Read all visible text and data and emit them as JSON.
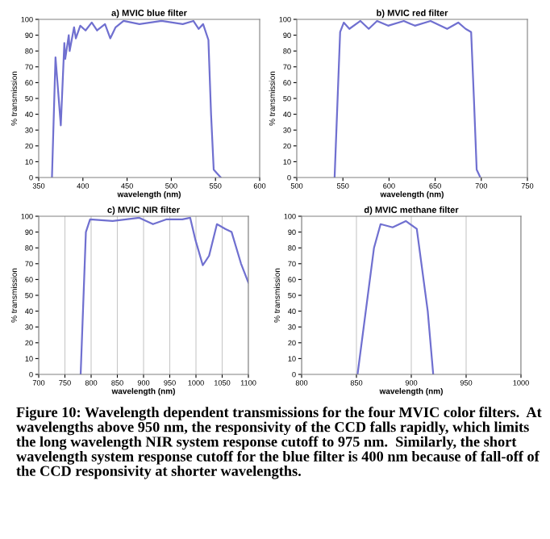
{
  "chart_data": [
    {
      "type": "line",
      "title": "a) MVIC blue filter",
      "xlabel": "wavelength (nm)",
      "ylabel": "% transmission",
      "xlim": [
        350,
        600
      ],
      "xticks": [
        350,
        400,
        450,
        500,
        550,
        600
      ],
      "ylim": [
        0,
        100
      ],
      "yticks": [
        0,
        10,
        20,
        30,
        40,
        50,
        60,
        70,
        80,
        90,
        100
      ],
      "grid": false,
      "line_style": "solid",
      "series": [
        {
          "color": "#7070d0",
          "x": [
            365,
            369,
            375,
            379,
            380,
            384,
            385,
            390,
            392,
            397,
            403,
            410,
            416,
            425,
            431,
            437,
            446,
            464,
            489,
            513,
            525,
            531,
            536,
            542,
            545,
            548,
            556
          ],
          "values": [
            0,
            76,
            33,
            85,
            75,
            90,
            80,
            95,
            88,
            96,
            93,
            98,
            93,
            97,
            88,
            95,
            99,
            97,
            99,
            97,
            99,
            94,
            97,
            87,
            40,
            5,
            0
          ]
        }
      ]
    },
    {
      "type": "line",
      "title": "b) MVIC red filter",
      "xlabel": "wavelength (nm)",
      "ylabel": "% transmission",
      "xlim": [
        500,
        750
      ],
      "xticks": [
        500,
        550,
        600,
        650,
        700,
        750
      ],
      "ylim": [
        0,
        100
      ],
      "yticks": [
        0,
        10,
        20,
        30,
        40,
        50,
        60,
        70,
        80,
        90,
        100
      ],
      "grid": false,
      "line_style": "solid",
      "series": [
        {
          "color": "#7070d0",
          "x": [
            541,
            547,
            551,
            557,
            569,
            578,
            587,
            599,
            616,
            628,
            645,
            663,
            675,
            683,
            689,
            692,
            695,
            699
          ],
          "values": [
            0,
            92,
            98,
            94,
            99,
            94,
            99,
            96,
            99,
            96,
            99,
            94,
            98,
            94,
            92,
            50,
            5,
            0
          ]
        }
      ]
    },
    {
      "type": "line",
      "title": "c) MVIC NIR filter",
      "xlabel": "wavelength (nm)",
      "ylabel": "% transmission",
      "xlim": [
        700,
        1100
      ],
      "xticks": [
        700,
        750,
        800,
        850,
        900,
        950,
        1000,
        1050,
        1100
      ],
      "ylim": [
        0,
        100
      ],
      "yticks": [
        0,
        10,
        20,
        30,
        40,
        50,
        60,
        70,
        80,
        90,
        100
      ],
      "grid": "x",
      "line_style": "solid",
      "series": [
        {
          "color": "#7070d0",
          "x": [
            780,
            790,
            798,
            841,
            892,
            918,
            943,
            974,
            989,
            999,
            1013,
            1025,
            1040,
            1056,
            1068,
            1086,
            1100
          ],
          "values": [
            0,
            90,
            98,
            97,
            99,
            95,
            98,
            98,
            99,
            85,
            69,
            75,
            95,
            92,
            90,
            70,
            58
          ]
        }
      ]
    },
    {
      "type": "line",
      "title": "d) MVIC methane filter",
      "xlabel": "wavelength (nm)",
      "ylabel": "% transmission",
      "xlim": [
        800,
        1000
      ],
      "xticks": [
        800,
        850,
        900,
        950,
        1000
      ],
      "ylim": [
        0,
        100
      ],
      "yticks": [
        0,
        10,
        20,
        30,
        40,
        50,
        60,
        70,
        80,
        90,
        100
      ],
      "grid": "x",
      "line_style": "solid",
      "series": [
        {
          "color": "#7070d0",
          "x": [
            851,
            866,
            872,
            883,
            895,
            905,
            915,
            920
          ],
          "values": [
            0,
            80,
            95,
            93,
            97,
            92,
            40,
            0
          ]
        }
      ],
      "annotations": [
        "Figure 10: Wavelength dependent transmissions for the four MVIC color filters.  At wavelengths above 950 nm, the responsivity of the CCD falls rapidly, which limits the long wavelength NIR system response cutoff to 975 nm.  Similarly, the short wavelength system response cutoff for the blue filter is 400 nm because of fall-off of the CCD responsivity at shorter wavelengths."
      ]
    }
  ]
}
